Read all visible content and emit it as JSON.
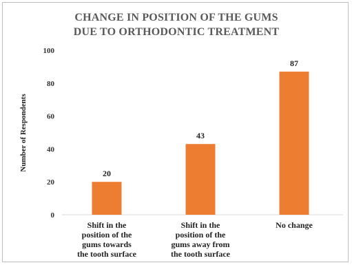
{
  "chart_data": {
    "type": "bar",
    "title_lines": [
      "CHANGE IN POSITION OF THE GUMS",
      "DUE TO ORTHODONTIC TREATMENT"
    ],
    "ylabel": "Number of Respondents",
    "xlabel": "",
    "ylim": [
      0,
      100
    ],
    "yticks": [
      0,
      20,
      40,
      60,
      80,
      100
    ],
    "grid": false,
    "legend": "none",
    "bar_color": "#ED7D31",
    "categories": [
      [
        "Shift in the",
        "position of the",
        "gums towards",
        "the tooth surface"
      ],
      [
        "Shift in the",
        "position of the",
        "gums away from",
        "the tooth surface"
      ],
      [
        "No change"
      ]
    ],
    "values": [
      20,
      43,
      87
    ],
    "data_labels": [
      "20",
      "43",
      "87"
    ]
  }
}
